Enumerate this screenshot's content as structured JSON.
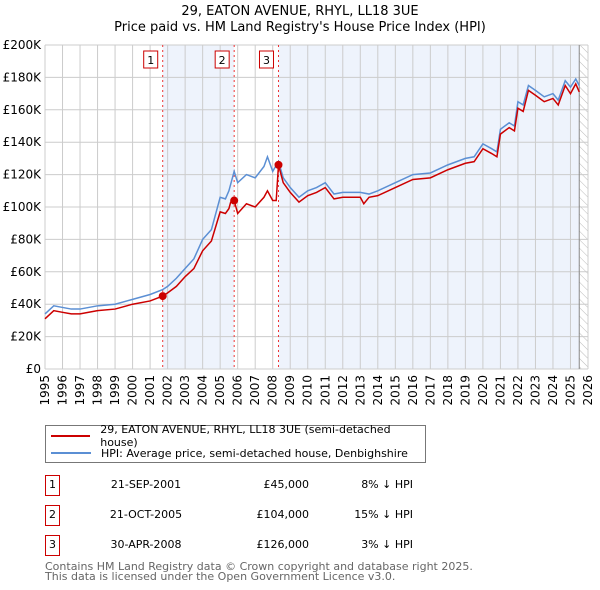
{
  "chart_data": {
    "type": "line",
    "title": "29, EATON AVENUE, RHYL, LL18 3UE",
    "subtitle": "Price paid vs. HM Land Registry's House Price Index (HPI)",
    "xlim": [
      1995,
      2026
    ],
    "ylim": [
      0,
      200000
    ],
    "yticks": [
      0,
      20000,
      40000,
      60000,
      80000,
      100000,
      120000,
      140000,
      160000,
      180000,
      200000
    ],
    "ytick_labels": [
      "£0",
      "£20K",
      "£40K",
      "£60K",
      "£80K",
      "£100K",
      "£120K",
      "£140K",
      "£160K",
      "£180K",
      "£200K"
    ],
    "xticks": [
      "1995",
      "1996",
      "1997",
      "1998",
      "1999",
      "2000",
      "2001",
      "2002",
      "2003",
      "2004",
      "2005",
      "2006",
      "2007",
      "2008",
      "2009",
      "2010",
      "2011",
      "2012",
      "2013",
      "2014",
      "2015",
      "2016",
      "2017",
      "2018",
      "2019",
      "2020",
      "2021",
      "2022",
      "2023",
      "2024",
      "2025",
      "2026"
    ],
    "grid": true,
    "colors": {
      "price": "#cc0000",
      "hpi": "#5b8fd4",
      "shade": "#eef3fc"
    },
    "series": [
      {
        "name": "29, EATON AVENUE, RHYL, LL18 3UE (semi-detached house)",
        "key": "price",
        "points": [
          [
            1995,
            31
          ],
          [
            1995.5,
            36
          ],
          [
            1996,
            35
          ],
          [
            1996.5,
            34
          ],
          [
            1997,
            34
          ],
          [
            1998,
            36
          ],
          [
            1999,
            37
          ],
          [
            2000,
            40
          ],
          [
            2001,
            42
          ],
          [
            2001.72,
            45
          ],
          [
            2002,
            47
          ],
          [
            2002.5,
            51
          ],
          [
            2003,
            57
          ],
          [
            2003.5,
            62
          ],
          [
            2004,
            73
          ],
          [
            2004.5,
            79
          ],
          [
            2005,
            97
          ],
          [
            2005.3,
            96
          ],
          [
            2005.5,
            99
          ],
          [
            2005.6,
            103
          ],
          [
            2005.8,
            104
          ],
          [
            2006,
            96
          ],
          [
            2006.5,
            102
          ],
          [
            2007,
            100
          ],
          [
            2007.5,
            106
          ],
          [
            2007.7,
            110
          ],
          [
            2008,
            104
          ],
          [
            2008.2,
            104
          ],
          [
            2008.33,
            126
          ],
          [
            2008.6,
            115
          ],
          [
            2009,
            109
          ],
          [
            2009.5,
            103
          ],
          [
            2010,
            107
          ],
          [
            2010.5,
            109
          ],
          [
            2011,
            112
          ],
          [
            2011.5,
            105
          ],
          [
            2012,
            106
          ],
          [
            2013,
            106
          ],
          [
            2013.2,
            102
          ],
          [
            2013.5,
            106
          ],
          [
            2014,
            107
          ],
          [
            2015,
            112
          ],
          [
            2016,
            117
          ],
          [
            2017,
            118
          ],
          [
            2018,
            123
          ],
          [
            2019,
            127
          ],
          [
            2019.5,
            128
          ],
          [
            2020,
            136
          ],
          [
            2020.5,
            133
          ],
          [
            2020.8,
            131
          ],
          [
            2021,
            145
          ],
          [
            2021.5,
            149
          ],
          [
            2021.8,
            147
          ],
          [
            2022,
            161
          ],
          [
            2022.3,
            159
          ],
          [
            2022.6,
            172
          ],
          [
            2023,
            169
          ],
          [
            2023.5,
            165
          ],
          [
            2024,
            167
          ],
          [
            2024.3,
            163
          ],
          [
            2024.7,
            175
          ],
          [
            2025,
            170
          ],
          [
            2025.3,
            176
          ],
          [
            2025.5,
            171
          ]
        ]
      },
      {
        "name": "HPI: Average price, semi-detached house, Denbighshire",
        "key": "hpi",
        "points": [
          [
            1995,
            34
          ],
          [
            1995.5,
            39
          ],
          [
            1996,
            38
          ],
          [
            1996.5,
            37
          ],
          [
            1997,
            37
          ],
          [
            1998,
            39
          ],
          [
            1999,
            40
          ],
          [
            2000,
            43
          ],
          [
            2001,
            46
          ],
          [
            2001.72,
            49
          ],
          [
            2002,
            51
          ],
          [
            2002.5,
            56
          ],
          [
            2003,
            62
          ],
          [
            2003.5,
            68
          ],
          [
            2004,
            80
          ],
          [
            2004.5,
            86
          ],
          [
            2005,
            106
          ],
          [
            2005.3,
            105
          ],
          [
            2005.5,
            110
          ],
          [
            2005.8,
            122
          ],
          [
            2006,
            115
          ],
          [
            2006.5,
            120
          ],
          [
            2007,
            118
          ],
          [
            2007.5,
            125
          ],
          [
            2007.7,
            131
          ],
          [
            2008,
            122
          ],
          [
            2008.33,
            128
          ],
          [
            2008.6,
            118
          ],
          [
            2009,
            112
          ],
          [
            2009.5,
            106
          ],
          [
            2010,
            110
          ],
          [
            2010.5,
            112
          ],
          [
            2011,
            115
          ],
          [
            2011.5,
            108
          ],
          [
            2012,
            109
          ],
          [
            2013,
            109
          ],
          [
            2013.5,
            108
          ],
          [
            2014,
            110
          ],
          [
            2015,
            115
          ],
          [
            2016,
            120
          ],
          [
            2017,
            121
          ],
          [
            2018,
            126
          ],
          [
            2019,
            130
          ],
          [
            2019.5,
            131
          ],
          [
            2020,
            139
          ],
          [
            2020.5,
            136
          ],
          [
            2020.8,
            134
          ],
          [
            2021,
            148
          ],
          [
            2021.5,
            152
          ],
          [
            2021.8,
            150
          ],
          [
            2022,
            165
          ],
          [
            2022.3,
            163
          ],
          [
            2022.6,
            175
          ],
          [
            2023,
            172
          ],
          [
            2023.5,
            168
          ],
          [
            2024,
            170
          ],
          [
            2024.3,
            166
          ],
          [
            2024.7,
            178
          ],
          [
            2025,
            174
          ],
          [
            2025.3,
            179
          ],
          [
            2025.5,
            175
          ]
        ]
      }
    ],
    "sales": [
      {
        "id": "1",
        "x": 2001.72,
        "price": 45000,
        "date": "21-SEP-2001",
        "price_label": "£45,000",
        "hpi_label": "8% ↓ HPI"
      },
      {
        "id": "2",
        "x": 2005.8,
        "price": 104000,
        "date": "21-OCT-2005",
        "price_label": "£104,000",
        "hpi_label": "15% ↓ HPI"
      },
      {
        "id": "3",
        "x": 2008.33,
        "price": 126000,
        "date": "30-APR-2008",
        "price_label": "£126,000",
        "hpi_label": "3% ↓ HPI"
      }
    ],
    "data_end": 2025.5
  },
  "footer": {
    "line1": "Contains HM Land Registry data © Crown copyright and database right 2025.",
    "line2": "This data is licensed under the Open Government Licence v3.0."
  }
}
